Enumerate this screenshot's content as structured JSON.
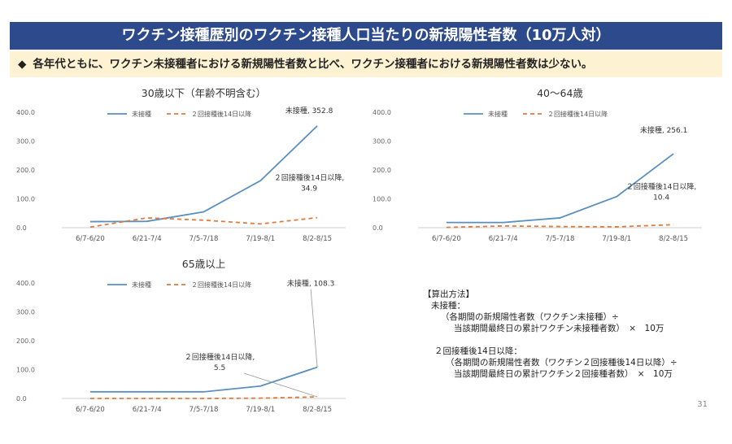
{
  "header": {
    "title": "ワクチン接種歴別のワクチン接種人口当たりの新規陽性者数（10万人対）",
    "subtitle_icon": "◆",
    "subtitle": "各年代ともに、ワクチン未接種者における新規陽性者数と比べ、ワクチン接種者における新規陽性者数は少ない。"
  },
  "colors": {
    "unvaccinated": "#5b8fc0",
    "vaccinated": "#e07b39",
    "title_bg": "#2d4b8c",
    "subtitle_bg": "#fdf3d2"
  },
  "chart_data": [
    {
      "type": "line",
      "title": "30歳以下（年齢不明含む）",
      "categories": [
        "6/7-6/20",
        "6/21-7/4",
        "7/5-7/18",
        "7/19-8/1",
        "8/2-8/15"
      ],
      "ylim": [
        0,
        400
      ],
      "yticks": [
        "0.0",
        "100.0",
        "200.0",
        "300.0",
        "400.0"
      ],
      "legend": "top",
      "grid": false,
      "series": [
        {
          "name": "未接種",
          "values": [
            21,
            22,
            55,
            163,
            352.8
          ]
        },
        {
          "name": "２回接種後14日以降",
          "values": [
            2,
            34,
            26,
            13,
            34.9
          ]
        }
      ],
      "annotations": [
        {
          "series": 0,
          "point": 4,
          "lines": [
            "未接種, 352.8"
          ]
        },
        {
          "series": 1,
          "point": 4,
          "lines": [
            "２回接種後14日以降,",
            "34.9"
          ]
        }
      ]
    },
    {
      "type": "line",
      "title": "40～64歳",
      "categories": [
        "6/7-6/20",
        "6/21-7/4",
        "7/5-7/18",
        "7/19-8/1",
        "8/2-8/15"
      ],
      "ylim": [
        0,
        400
      ],
      "yticks": [
        "0.0",
        "100.0",
        "200.0",
        "300.0",
        "400.0"
      ],
      "legend": "top",
      "grid": false,
      "series": [
        {
          "name": "未接種",
          "values": [
            18,
            18,
            34,
            108,
            256.1
          ]
        },
        {
          "name": "２回接種後14日以降",
          "values": [
            1,
            6,
            4,
            3,
            10.4
          ]
        }
      ],
      "annotations": [
        {
          "series": 0,
          "point": 4,
          "lines": [
            "未接種, 256.1"
          ]
        },
        {
          "series": 1,
          "point": 4,
          "lines": [
            "２回接種後14日以降,",
            "10.4"
          ]
        }
      ]
    },
    {
      "type": "line",
      "title": "65歳以上",
      "categories": [
        "6/7-6/20",
        "6/21-7/4",
        "7/5-7/18",
        "7/19-8/1",
        "8/2-8/15"
      ],
      "ylim": [
        0,
        400
      ],
      "yticks": [
        "0.0",
        "100.0",
        "200.0",
        "300.0",
        "400.0"
      ],
      "legend": "top",
      "grid": false,
      "series": [
        {
          "name": "未接種",
          "values": [
            23,
            23,
            23,
            43,
            108.3
          ]
        },
        {
          "name": "２回接種後14日以降",
          "values": [
            0,
            0,
            0,
            1,
            5.5
          ]
        }
      ],
      "annotations": [
        {
          "series": 0,
          "point": 4,
          "lines": [
            "未接種, 108.3"
          ]
        },
        {
          "series": 1,
          "point": 4,
          "lines": [
            "２回接種後14日以降,",
            "5.5"
          ]
        }
      ]
    }
  ],
  "method": {
    "heading": "【算出方法】",
    "unvax_label": "未接種：",
    "unvax_formula1": "（各期間の新規陽性者数（ワクチン未接種）÷",
    "unvax_formula2": "当該期間最終日の累計ワクチン未接種者数）　×　10万",
    "vax_label": "２回接種後14日以降：",
    "vax_formula1": "（各期間の新規陽性者数（ワクチン２回接種後14日以降）÷",
    "vax_formula2": "当該期間最終日の累計ワクチン２回接種者数）　×　10万"
  },
  "page_number": "31"
}
